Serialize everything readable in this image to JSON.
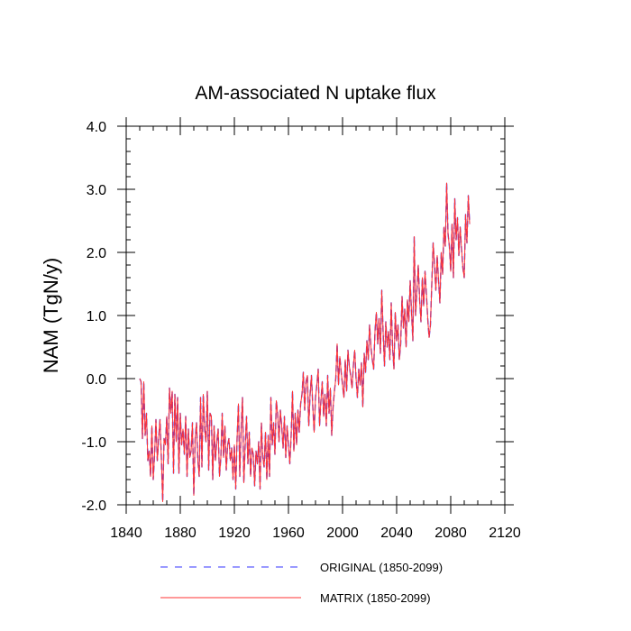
{
  "chart_data": {
    "type": "line",
    "title": "AM-associated N uptake flux",
    "ylabel": "NAM  (TgN/y)",
    "xlabel": "",
    "xlim": [
      1840,
      2120
    ],
    "ylim": [
      -2.0,
      4.0
    ],
    "xticks": [
      1840,
      1880,
      1920,
      1960,
      2000,
      2040,
      2080,
      2120
    ],
    "xtick_labels": [
      "1840",
      "1880",
      "1920",
      "1960",
      "2000",
      "2040",
      "2080",
      "2120"
    ],
    "yticks": [
      -2.0,
      -1.0,
      0.0,
      1.0,
      2.0,
      3.0,
      4.0
    ],
    "ytick_labels": [
      "-2.0",
      "-1.0",
      "0.0",
      "1.0",
      "2.0",
      "3.0",
      "4.0"
    ],
    "grid": false,
    "legend_position": "bottom",
    "x_start": 1850,
    "x_end": 2099,
    "series": [
      {
        "name": "ORIGINAL (1850-2099)",
        "color": "#3333ff",
        "style": "dashed",
        "values": [
          0.0,
          -0.05,
          -0.95,
          -0.05,
          -0.9,
          -0.55,
          -1.3,
          -1.15,
          -1.55,
          -0.75,
          -1.6,
          -1.2,
          -0.65,
          -1.3,
          -0.95,
          -0.65,
          -1.25,
          -1.95,
          -0.95,
          -1.05,
          -0.6,
          -1.35,
          -0.15,
          -0.55,
          -0.2,
          -1.5,
          -0.25,
          -1.0,
          -0.3,
          -1.5,
          -0.55,
          -1.05,
          -0.8,
          -1.2,
          -0.6,
          -1.55,
          -0.8,
          -1.25,
          -1.15,
          -0.7,
          -1.85,
          -0.95,
          -0.7,
          -1.3,
          -1.55,
          -0.3,
          -1.4,
          -0.25,
          -0.8,
          -1.0,
          -0.2,
          -1.45,
          -0.55,
          -0.6,
          -1.6,
          -0.75,
          -1.3,
          -1.0,
          -0.8,
          -1.55,
          -1.25,
          -0.55,
          -1.25,
          -0.75,
          -1.45,
          -1.05,
          -0.95,
          -1.3,
          -1.1,
          -1.6,
          -1.05,
          -1.75,
          -0.95,
          -0.4,
          -1.55,
          -0.8,
          -0.3,
          -1.65,
          -1.05,
          -0.6,
          -1.35,
          -0.85,
          -1.55,
          -1.1,
          -1.2,
          -1.7,
          -1.15,
          -1.35,
          -1.0,
          -1.75,
          -0.7,
          -1.25,
          -1.4,
          -0.85,
          -1.6,
          -0.9,
          -1.55,
          -0.3,
          -1.05,
          -0.7,
          -1.2,
          -0.35,
          -0.55,
          -1.0,
          -0.5,
          -0.75,
          -1.1,
          -0.6,
          -1.25,
          -0.75,
          -1.05,
          -1.35,
          -0.9,
          -0.2,
          -1.15,
          -0.55,
          -1.05,
          -0.5,
          -0.85,
          -0.4,
          -0.25,
          0.1,
          -0.5,
          -0.05,
          0.05,
          -0.75,
          -0.25,
          0.05,
          -0.45,
          -0.85,
          -0.3,
          -0.1,
          0.15,
          -0.75,
          -0.35,
          -0.05,
          -0.6,
          -0.25,
          -0.75,
          0.05,
          -0.55,
          -0.15,
          -0.9,
          -0.45,
          -0.2,
          0.0,
          0.55,
          -0.1,
          0.35,
          0.1,
          -0.1,
          -0.3,
          0.3,
          -0.2,
          0.45,
          0.2,
          0.05,
          -0.15,
          0.2,
          0.45,
          0.0,
          -0.3,
          0.15,
          -0.1,
          0.25,
          -0.45,
          0.4,
          0.1,
          0.6,
          0.3,
          0.85,
          0.5,
          0.3,
          0.15,
          0.75,
          1.05,
          0.55,
          0.95,
          0.4,
          1.4,
          0.75,
          0.2,
          0.9,
          0.5,
          0.75,
          0.3,
          1.2,
          0.5,
          0.15,
          1.05,
          0.6,
          0.85,
          0.3,
          0.55,
          1.3,
          0.8,
          1.1,
          0.5,
          1.25,
          0.9,
          1.55,
          1.05,
          0.6,
          2.25,
          1.0,
          1.4,
          1.8,
          1.25,
          0.9,
          1.6,
          1.15,
          1.7,
          1.35,
          0.95,
          0.65,
          0.85,
          1.5,
          2.15,
          1.8,
          1.4,
          1.95,
          1.55,
          1.2,
          2.0,
          1.65,
          2.4,
          2.1,
          3.1,
          2.3,
          2.1,
          1.7,
          2.45,
          1.6,
          2.85,
          2.2,
          2.55,
          1.95,
          2.4,
          2.05,
          1.75,
          1.6,
          2.6,
          2.15,
          2.9,
          2.45
        ]
      },
      {
        "name": "MATRIX (1850-2099)",
        "color": "#ff3333",
        "style": "solid",
        "values": [
          0.0,
          -0.05,
          -0.95,
          -0.05,
          -0.9,
          -0.55,
          -1.3,
          -1.15,
          -1.55,
          -0.75,
          -1.6,
          -1.2,
          -0.65,
          -1.3,
          -0.95,
          -0.65,
          -1.25,
          -1.95,
          -0.95,
          -1.05,
          -0.6,
          -1.35,
          -0.15,
          -0.55,
          -0.2,
          -1.5,
          -0.25,
          -1.0,
          -0.3,
          -1.5,
          -0.55,
          -1.05,
          -0.8,
          -1.2,
          -0.6,
          -1.55,
          -0.8,
          -1.25,
          -1.15,
          -0.7,
          -1.85,
          -0.95,
          -0.7,
          -1.3,
          -1.55,
          -0.3,
          -1.4,
          -0.25,
          -0.8,
          -1.0,
          -0.2,
          -1.45,
          -0.55,
          -0.6,
          -1.6,
          -0.75,
          -1.3,
          -1.0,
          -0.8,
          -1.55,
          -1.25,
          -0.55,
          -1.25,
          -0.75,
          -1.45,
          -1.05,
          -0.95,
          -1.3,
          -1.1,
          -1.6,
          -1.05,
          -1.75,
          -0.95,
          -0.4,
          -1.55,
          -0.8,
          -0.3,
          -1.65,
          -1.05,
          -0.6,
          -1.35,
          -0.85,
          -1.55,
          -1.1,
          -1.2,
          -1.7,
          -1.15,
          -1.35,
          -1.0,
          -1.75,
          -0.7,
          -1.25,
          -1.4,
          -0.85,
          -1.6,
          -0.9,
          -1.55,
          -0.3,
          -1.05,
          -0.7,
          -1.2,
          -0.35,
          -0.55,
          -1.0,
          -0.5,
          -0.75,
          -1.1,
          -0.6,
          -1.25,
          -0.75,
          -1.05,
          -1.35,
          -0.9,
          -0.2,
          -1.15,
          -0.55,
          -1.05,
          -0.5,
          -0.85,
          -0.4,
          -0.25,
          0.1,
          -0.5,
          -0.05,
          0.05,
          -0.75,
          -0.25,
          0.05,
          -0.45,
          -0.85,
          -0.3,
          -0.1,
          0.15,
          -0.75,
          -0.35,
          -0.05,
          -0.6,
          -0.25,
          -0.75,
          0.05,
          -0.55,
          -0.15,
          -0.9,
          -0.45,
          -0.2,
          0.0,
          0.55,
          -0.1,
          0.35,
          0.1,
          -0.1,
          -0.3,
          0.3,
          -0.2,
          0.45,
          0.2,
          0.05,
          -0.15,
          0.2,
          0.45,
          0.0,
          -0.3,
          0.15,
          -0.1,
          0.25,
          -0.45,
          0.4,
          0.1,
          0.6,
          0.3,
          0.85,
          0.5,
          0.3,
          0.15,
          0.75,
          1.05,
          0.55,
          0.95,
          0.4,
          1.4,
          0.75,
          0.2,
          0.9,
          0.5,
          0.75,
          0.3,
          1.2,
          0.5,
          0.15,
          1.05,
          0.6,
          0.85,
          0.3,
          0.55,
          1.3,
          0.8,
          1.1,
          0.5,
          1.25,
          0.9,
          1.55,
          1.05,
          0.6,
          2.25,
          1.0,
          1.4,
          1.8,
          1.25,
          0.9,
          1.6,
          1.15,
          1.7,
          1.35,
          0.95,
          0.65,
          0.85,
          1.5,
          2.15,
          1.8,
          1.4,
          1.95,
          1.55,
          1.2,
          2.0,
          1.65,
          2.4,
          2.1,
          3.1,
          2.3,
          2.1,
          1.7,
          2.45,
          1.6,
          2.85,
          2.2,
          2.55,
          1.95,
          2.4,
          2.05,
          1.75,
          1.6,
          2.6,
          2.15,
          2.9,
          2.45
        ]
      }
    ]
  }
}
